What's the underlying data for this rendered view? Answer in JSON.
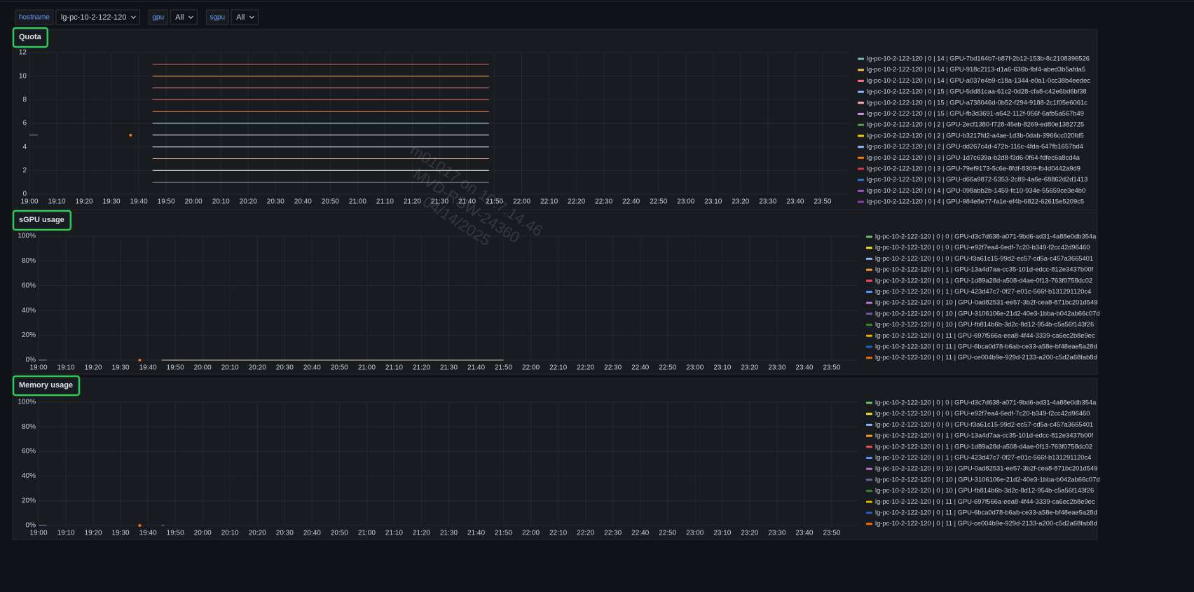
{
  "header": {
    "filters": [
      {
        "label": "hostname",
        "value": "lg-pc-10-2-122-120"
      },
      {
        "label": "gpu",
        "value": "All"
      },
      {
        "label": "sgpu",
        "value": "All"
      }
    ]
  },
  "watermark": [
    "m01017 on 10.7.14.46",
    "MVD-RSW-24360",
    "04/14/2025"
  ],
  "chart_data": [
    {
      "type": "line",
      "title": "Quota",
      "xlim": [
        "19:00",
        "24:00"
      ],
      "xticks": [
        "19:00",
        "19:10",
        "19:20",
        "19:30",
        "19:40",
        "19:50",
        "20:00",
        "20:10",
        "20:20",
        "20:30",
        "20:40",
        "20:50",
        "21:00",
        "21:10",
        "21:20",
        "21:30",
        "21:40",
        "21:50",
        "22:00",
        "22:10",
        "22:20",
        "22:30",
        "22:40",
        "22:50",
        "23:00",
        "23:10",
        "23:20",
        "23:30",
        "23:40",
        "23:50"
      ],
      "ylim": [
        0,
        12
      ],
      "yticks": [
        0,
        2,
        4,
        6,
        8,
        10,
        12
      ],
      "grid": true,
      "series": [
        {
          "color": "#e8735f",
          "x": [
            "19:45",
            "21:48"
          ],
          "values": [
            11,
            11
          ]
        },
        {
          "color": "#ffb357",
          "x": [
            "19:45",
            "21:48"
          ],
          "values": [
            10,
            10
          ]
        },
        {
          "color": "#ff8fa0",
          "x": [
            "19:45",
            "21:48"
          ],
          "values": [
            9,
            9
          ]
        },
        {
          "color": "#f2707a",
          "x": [
            "19:45",
            "21:48"
          ],
          "values": [
            8,
            8
          ]
        },
        {
          "color": "#f08c50",
          "x": [
            "19:45",
            "21:48"
          ],
          "values": [
            7,
            7
          ]
        },
        {
          "color": "#a8e0e0",
          "x": [
            "19:45",
            "21:48"
          ],
          "values": [
            6,
            6
          ]
        },
        {
          "color": "#e6e6e6",
          "x": [
            "19:45",
            "21:48"
          ],
          "values": [
            5,
            5
          ]
        },
        {
          "color": "#f0f0f0",
          "x": [
            "19:45",
            "21:48"
          ],
          "values": [
            4,
            4
          ]
        },
        {
          "color": "#f5b38a",
          "x": [
            "19:45",
            "21:48"
          ],
          "values": [
            3,
            3
          ]
        },
        {
          "color": "#f8f8e8",
          "x": [
            "19:45",
            "21:48"
          ],
          "values": [
            2,
            2
          ]
        },
        {
          "color": "#6b7a9a",
          "x": [
            "19:45",
            "21:48"
          ],
          "values": [
            1,
            1
          ]
        },
        {
          "color": "#7a8fb8",
          "x": [
            "19:00",
            "19:03"
          ],
          "values": [
            5,
            5
          ]
        },
        {
          "color": "#e0752d",
          "x": [
            "19:37"
          ],
          "values": [
            5
          ]
        }
      ],
      "legend": [
        {
          "label": "lg-pc-10-2-122-120 | 0 | 14 | GPU-7bd164b7-b87f-2b12-153b-8c2108396526",
          "color": "#73bfb8"
        },
        {
          "label": "lg-pc-10-2-122-120 | 0 | 14 | GPU-918c2113-d1a6-636b-fbf4-abed3b5afda5",
          "color": "#ffb357"
        },
        {
          "label": "lg-pc-10-2-122-120 | 0 | 14 | GPU-a037e4b9-c18a-1344-e0a1-0cc38b4eedec",
          "color": "#ff7383"
        },
        {
          "label": "lg-pc-10-2-122-120 | 0 | 15 | GPU-5dd81caa-61c2-0d28-cfa8-c42e6bd6bf38",
          "color": "#8ab8ff"
        },
        {
          "label": "lg-pc-10-2-122-120 | 0 | 15 | GPU-a738046d-0b52-f294-9188-2c1f05e6061c",
          "color": "#ffa6b0"
        },
        {
          "label": "lg-pc-10-2-122-120 | 0 | 15 | GPU-fb3d3691-a642-112f-956f-6afb5a567b49",
          "color": "#ca95e5"
        },
        {
          "label": "lg-pc-10-2-122-120 | 0 | 2 | GPU-2ecf1380-f728-45eb-8269-ed80e1382725",
          "color": "#56a64b"
        },
        {
          "label": "lg-pc-10-2-122-120 | 0 | 2 | GPU-b3217fd2-a4ae-1d3b-0dab-3966cc020fd5",
          "color": "#f2cc0c"
        },
        {
          "label": "lg-pc-10-2-122-120 | 0 | 2 | GPU-dd267c4d-472b-116c-4fda-647fb1657bd4",
          "color": "#8ab8ff"
        },
        {
          "label": "lg-pc-10-2-122-120 | 0 | 3 | GPU-1d7c639a-b2d8-f3d6-0f64-fdfec6a8cd4a",
          "color": "#ff780a"
        },
        {
          "label": "lg-pc-10-2-122-120 | 0 | 3 | GPU-79ef9173-5c6e-8fdf-8309-fb4d0442a9d9",
          "color": "#e02f44"
        },
        {
          "label": "lg-pc-10-2-122-120 | 0 | 3 | GPU-d66a9872-5353-2c89-4a6e-68862d2d1413",
          "color": "#3274d9"
        },
        {
          "label": "lg-pc-10-2-122-120 | 0 | 4 | GPU-098abb2b-1459-fc10-934e-55659ce3e4b0",
          "color": "#a352cc"
        },
        {
          "label": "lg-pc-10-2-122-120 | 0 | 4 | GPU-984e8e77-fa1e-ef4b-6822-62615e5209c5",
          "color": "#8f3bb8"
        }
      ]
    },
    {
      "type": "line",
      "title": "sGPU usage",
      "xlim": [
        "19:00",
        "24:00"
      ],
      "xticks": [
        "19:00",
        "19:10",
        "19:20",
        "19:30",
        "19:40",
        "19:50",
        "20:00",
        "20:10",
        "20:20",
        "20:30",
        "20:40",
        "20:50",
        "21:00",
        "21:10",
        "21:20",
        "21:30",
        "21:40",
        "21:50",
        "22:00",
        "22:10",
        "22:20",
        "22:30",
        "22:40",
        "22:50",
        "23:00",
        "23:10",
        "23:20",
        "23:30",
        "23:40",
        "23:50"
      ],
      "ylim": [
        0,
        100
      ],
      "yticks": [
        {
          "value": 0,
          "label": "0%"
        },
        {
          "value": 20,
          "label": "20%"
        },
        {
          "value": 40,
          "label": "40%"
        },
        {
          "value": 60,
          "label": "60%"
        },
        {
          "value": 80,
          "label": "80%"
        },
        {
          "value": 100,
          "label": "100%"
        }
      ],
      "grid": true,
      "series": [
        {
          "color": "#d8c9b0",
          "x": [
            "19:45",
            "21:50"
          ],
          "values": [
            0,
            0
          ]
        },
        {
          "color": "#7a8fb8",
          "x": [
            "19:00",
            "19:03"
          ],
          "values": [
            0,
            0
          ]
        },
        {
          "color": "#e0752d",
          "x": [
            "19:37"
          ],
          "values": [
            0
          ]
        }
      ],
      "legend": [
        {
          "label": "lg-pc-10-2-122-120 | 0 | 0 | GPU-d3c7d638-a071-9bd6-ad31-4a88e0db354a",
          "color": "#73bf69"
        },
        {
          "label": "lg-pc-10-2-122-120 | 0 | 0 | GPU-e92f7ea4-6edf-7c20-b349-f2cc42d96460",
          "color": "#fade2a"
        },
        {
          "label": "lg-pc-10-2-122-120 | 0 | 0 | GPU-f3a61c15-99d2-ec57-cd5a-c457a3665401",
          "color": "#8ab8ff"
        },
        {
          "label": "lg-pc-10-2-122-120 | 0 | 1 | GPU-13a4d7aa-cc35-101d-edcc-812e3437b00f",
          "color": "#ff9830"
        },
        {
          "label": "lg-pc-10-2-122-120 | 0 | 1 | GPU-1d89a28d-a508-d4ae-0f13-763f0758dc02",
          "color": "#f2495c"
        },
        {
          "label": "lg-pc-10-2-122-120 | 0 | 1 | GPU-423d47c7-0f27-e01c-566f-b131291120c4",
          "color": "#5794f2"
        },
        {
          "label": "lg-pc-10-2-122-120 | 0 | 10 | GPU-0ad82531-ee57-3b2f-cea8-871bc201d549",
          "color": "#b877d9"
        },
        {
          "label": "lg-pc-10-2-122-120 | 0 | 10 | GPU-3106106e-21d2-40e3-1bba-b042ab66c07d",
          "color": "#705da0"
        },
        {
          "label": "lg-pc-10-2-122-120 | 0 | 10 | GPU-fb814b6b-3d2c-8d12-954b-c5a56f143f26",
          "color": "#37872d"
        },
        {
          "label": "lg-pc-10-2-122-120 | 0 | 11 | GPU-697f566a-eea8-4f44-3339-ca6ec2b8e9ec",
          "color": "#e0b400"
        },
        {
          "label": "lg-pc-10-2-122-120 | 0 | 11 | GPU-6bca0d78-b6ab-ce33-a58e-bf48eae5a28d",
          "color": "#1f60c4"
        },
        {
          "label": "lg-pc-10-2-122-120 | 0 | 11 | GPU-ce004b9e-929d-2133-a200-c5d2a68fab8d",
          "color": "#fa6400"
        }
      ]
    },
    {
      "type": "line",
      "title": "Memory usage",
      "xlim": [
        "19:00",
        "24:00"
      ],
      "xticks": [
        "19:00",
        "19:10",
        "19:20",
        "19:30",
        "19:40",
        "19:50",
        "20:00",
        "20:10",
        "20:20",
        "20:30",
        "20:40",
        "20:50",
        "21:00",
        "21:10",
        "21:20",
        "21:30",
        "21:40",
        "21:50",
        "22:00",
        "22:10",
        "22:20",
        "22:30",
        "22:40",
        "22:50",
        "23:00",
        "23:10",
        "23:20",
        "23:30",
        "23:40",
        "23:50"
      ],
      "ylim": [
        0,
        100
      ],
      "yticks": [
        {
          "value": 0,
          "label": "0%"
        },
        {
          "value": 20,
          "label": "20%"
        },
        {
          "value": 40,
          "label": "40%"
        },
        {
          "value": 60,
          "label": "60%"
        },
        {
          "value": 80,
          "label": "80%"
        },
        {
          "value": 100,
          "label": "100%"
        }
      ],
      "grid": true,
      "series": [
        {
          "color": "#7a8fb8",
          "x": [
            "19:00",
            "19:03"
          ],
          "values": [
            0,
            0
          ]
        },
        {
          "color": "#e0752d",
          "x": [
            "19:37"
          ],
          "values": [
            0
          ]
        },
        {
          "color": "#8a8fa8",
          "x": [
            "19:45",
            "19:46"
          ],
          "values": [
            0,
            0
          ]
        }
      ],
      "legend": [
        {
          "label": "lg-pc-10-2-122-120 | 0 | 0 | GPU-d3c7d638-a071-9bd6-ad31-4a88e0db354a",
          "color": "#73bf69"
        },
        {
          "label": "lg-pc-10-2-122-120 | 0 | 0 | GPU-e92f7ea4-6edf-7c20-b349-f2cc42d96460",
          "color": "#fade2a"
        },
        {
          "label": "lg-pc-10-2-122-120 | 0 | 0 | GPU-f3a61c15-99d2-ec57-cd5a-c457a3665401",
          "color": "#8ab8ff"
        },
        {
          "label": "lg-pc-10-2-122-120 | 0 | 1 | GPU-13a4d7aa-cc35-101d-edcc-812e3437b00f",
          "color": "#ff9830"
        },
        {
          "label": "lg-pc-10-2-122-120 | 0 | 1 | GPU-1d89a28d-a508-d4ae-0f13-763f0758dc02",
          "color": "#f2495c"
        },
        {
          "label": "lg-pc-10-2-122-120 | 0 | 1 | GPU-423d47c7-0f27-e01c-566f-b131291120c4",
          "color": "#5794f2"
        },
        {
          "label": "lg-pc-10-2-122-120 | 0 | 10 | GPU-0ad82531-ee57-3b2f-cea8-871bc201d549",
          "color": "#b877d9"
        },
        {
          "label": "lg-pc-10-2-122-120 | 0 | 10 | GPU-3106106e-21d2-40e3-1bba-b042ab66c07d",
          "color": "#705da0"
        },
        {
          "label": "lg-pc-10-2-122-120 | 0 | 10 | GPU-fb814b6b-3d2c-8d12-954b-c5a56f143f26",
          "color": "#37872d"
        },
        {
          "label": "lg-pc-10-2-122-120 | 0 | 11 | GPU-697f566a-eea8-4f44-3339-ca6ec2b8e9ec",
          "color": "#e0b400"
        },
        {
          "label": "lg-pc-10-2-122-120 | 0 | 11 | GPU-6bca0d78-b6ab-ce33-a58e-bf48eae5a28d",
          "color": "#1f60c4"
        },
        {
          "label": "lg-pc-10-2-122-120 | 0 | 11 | GPU-ce004b9e-929d-2133-a200-c5d2a68fab8d",
          "color": "#fa6400"
        }
      ]
    }
  ]
}
